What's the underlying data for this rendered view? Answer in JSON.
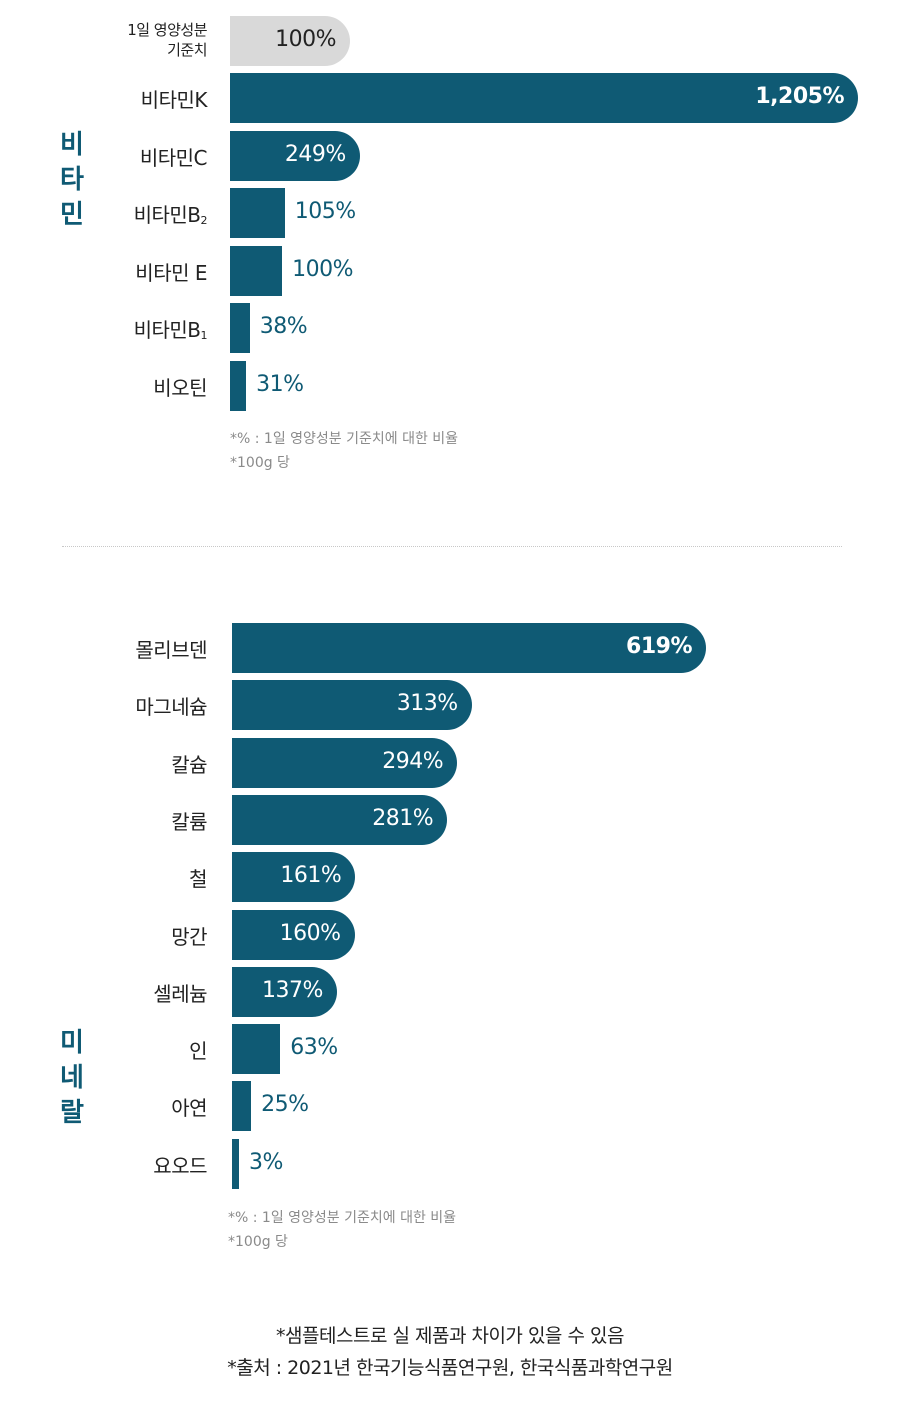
{
  "chart_data": [
    {
      "type": "bar",
      "orientation": "horizontal",
      "title": "비타민",
      "reference": {
        "label_line1": "1일 영양성분",
        "label_line2": "기준치",
        "value": 100,
        "value_label": "100%",
        "color": "#d9d9d9"
      },
      "categories": [
        {
          "name": "비타민K",
          "sub": ""
        },
        {
          "name": "비타민C",
          "sub": ""
        },
        {
          "name": "비타민B",
          "sub": "2"
        },
        {
          "name": "비타민 E",
          "sub": ""
        },
        {
          "name": "비타민B",
          "sub": "1"
        },
        {
          "name": "비오틴",
          "sub": ""
        }
      ],
      "values": [
        1205,
        249,
        105,
        100,
        38,
        31
      ],
      "value_labels": [
        "1,205%",
        "249%",
        "105%",
        "100%",
        "38%",
        "31%"
      ],
      "notes": [
        "*% : 1일 영양성분 기준치에 대한 비율",
        "*100g 당"
      ],
      "color": "#0f5a74"
    },
    {
      "type": "bar",
      "orientation": "horizontal",
      "title": "미네랄",
      "categories": [
        {
          "name": "몰리브덴",
          "sub": ""
        },
        {
          "name": "마그네슘",
          "sub": ""
        },
        {
          "name": "칼슘",
          "sub": ""
        },
        {
          "name": "칼륨",
          "sub": ""
        },
        {
          "name": "철",
          "sub": ""
        },
        {
          "name": "망간",
          "sub": ""
        },
        {
          "name": "셀레늄",
          "sub": ""
        },
        {
          "name": "인",
          "sub": ""
        },
        {
          "name": "아연",
          "sub": ""
        },
        {
          "name": "요오드",
          "sub": ""
        }
      ],
      "values": [
        619,
        313,
        294,
        281,
        161,
        160,
        137,
        63,
        25,
        3
      ],
      "value_labels": [
        "619%",
        "313%",
        "294%",
        "281%",
        "161%",
        "160%",
        "137%",
        "63%",
        "25%",
        "3%"
      ],
      "notes": [
        "*% : 1일 영양성분 기준치에 대한 비율",
        "*100g 당"
      ],
      "color": "#0f5a74"
    }
  ],
  "footer": {
    "line1": "*샘플테스트로 실 제품과 차이가 있을 수 있음",
    "line2": "*출처 : 2021년 한국기능식품연구원, 한국식품과학연구원"
  }
}
